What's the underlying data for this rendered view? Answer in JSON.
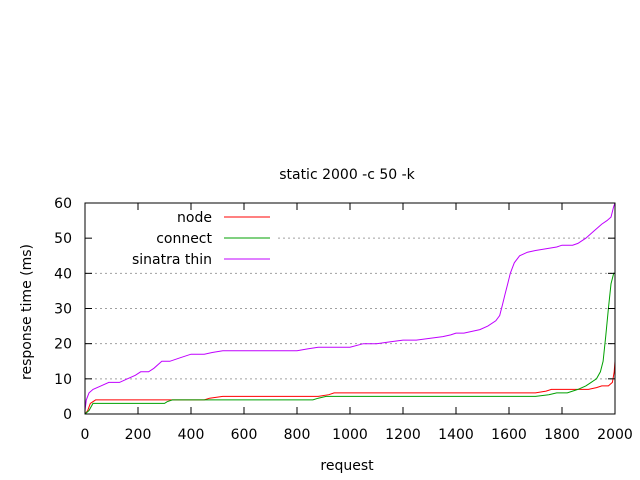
{
  "chart_data": {
    "type": "line",
    "title": "static 2000 -c 50 -k",
    "xlabel": "request",
    "ylabel": "response time (ms)",
    "xlim": [
      0,
      2000
    ],
    "ylim": [
      0,
      60
    ],
    "xticks": [
      "0",
      "200",
      "400",
      "600",
      "800",
      "1000",
      "1200",
      "1400",
      "1600",
      "1800",
      "2000"
    ],
    "yticks": [
      "0",
      "10",
      "20",
      "30",
      "40",
      "50",
      "60"
    ],
    "grid": "horizontal-dotted",
    "legend": "top-left",
    "series": [
      {
        "name": "node",
        "color": "#ff0000",
        "points": [
          [
            0,
            0
          ],
          [
            10,
            1
          ],
          [
            20,
            3
          ],
          [
            40,
            4
          ],
          [
            100,
            4
          ],
          [
            200,
            4
          ],
          [
            300,
            4
          ],
          [
            330,
            4
          ],
          [
            450,
            4
          ],
          [
            470,
            4.5
          ],
          [
            520,
            5
          ],
          [
            700,
            5
          ],
          [
            880,
            5
          ],
          [
            920,
            5.5
          ],
          [
            940,
            6
          ],
          [
            1100,
            6
          ],
          [
            1300,
            6
          ],
          [
            1500,
            6
          ],
          [
            1700,
            6
          ],
          [
            1740,
            6.5
          ],
          [
            1760,
            7
          ],
          [
            1800,
            7
          ],
          [
            1850,
            7
          ],
          [
            1900,
            7
          ],
          [
            1930,
            7.5
          ],
          [
            1950,
            8
          ],
          [
            1975,
            8
          ],
          [
            1990,
            9
          ],
          [
            1997,
            12
          ],
          [
            2000,
            15
          ]
        ]
      },
      {
        "name": "connect",
        "color": "#00a000",
        "points": [
          [
            0,
            0
          ],
          [
            15,
            1
          ],
          [
            30,
            3
          ],
          [
            100,
            3
          ],
          [
            200,
            3
          ],
          [
            300,
            3
          ],
          [
            310,
            3.5
          ],
          [
            330,
            4
          ],
          [
            500,
            4
          ],
          [
            700,
            4
          ],
          [
            860,
            4
          ],
          [
            880,
            4.5
          ],
          [
            910,
            5
          ],
          [
            1100,
            5
          ],
          [
            1300,
            5
          ],
          [
            1500,
            5
          ],
          [
            1700,
            5
          ],
          [
            1750,
            5.5
          ],
          [
            1780,
            6
          ],
          [
            1820,
            6
          ],
          [
            1860,
            7
          ],
          [
            1890,
            8
          ],
          [
            1910,
            9
          ],
          [
            1930,
            10
          ],
          [
            1945,
            12
          ],
          [
            1955,
            15
          ],
          [
            1965,
            22
          ],
          [
            1975,
            30
          ],
          [
            1985,
            37
          ],
          [
            1995,
            40
          ],
          [
            2000,
            40
          ]
        ]
      },
      {
        "name": "sinatra thin",
        "color": "#c000ff",
        "points": [
          [
            0,
            1
          ],
          [
            5,
            4
          ],
          [
            15,
            6
          ],
          [
            30,
            7
          ],
          [
            60,
            8
          ],
          [
            90,
            9
          ],
          [
            130,
            9
          ],
          [
            160,
            10
          ],
          [
            190,
            11
          ],
          [
            210,
            12
          ],
          [
            240,
            12
          ],
          [
            260,
            13
          ],
          [
            290,
            15
          ],
          [
            320,
            15
          ],
          [
            360,
            16
          ],
          [
            400,
            17
          ],
          [
            450,
            17
          ],
          [
            480,
            17.5
          ],
          [
            520,
            18
          ],
          [
            600,
            18
          ],
          [
            700,
            18
          ],
          [
            800,
            18
          ],
          [
            840,
            18.5
          ],
          [
            880,
            19
          ],
          [
            950,
            19
          ],
          [
            1000,
            19
          ],
          [
            1050,
            20
          ],
          [
            1100,
            20
          ],
          [
            1150,
            20.5
          ],
          [
            1200,
            21
          ],
          [
            1250,
            21
          ],
          [
            1300,
            21.5
          ],
          [
            1350,
            22
          ],
          [
            1380,
            22.5
          ],
          [
            1400,
            23
          ],
          [
            1430,
            23
          ],
          [
            1460,
            23.5
          ],
          [
            1490,
            24
          ],
          [
            1520,
            25
          ],
          [
            1550,
            26.5
          ],
          [
            1565,
            28
          ],
          [
            1575,
            31
          ],
          [
            1585,
            34
          ],
          [
            1595,
            37
          ],
          [
            1605,
            40
          ],
          [
            1620,
            43
          ],
          [
            1640,
            45
          ],
          [
            1670,
            46
          ],
          [
            1700,
            46.5
          ],
          [
            1740,
            47
          ],
          [
            1780,
            47.5
          ],
          [
            1800,
            48
          ],
          [
            1840,
            48
          ],
          [
            1860,
            48.5
          ],
          [
            1890,
            50
          ],
          [
            1920,
            52
          ],
          [
            1950,
            54
          ],
          [
            1970,
            55
          ],
          [
            1985,
            56
          ],
          [
            1995,
            59
          ],
          [
            2000,
            60
          ]
        ]
      }
    ]
  }
}
